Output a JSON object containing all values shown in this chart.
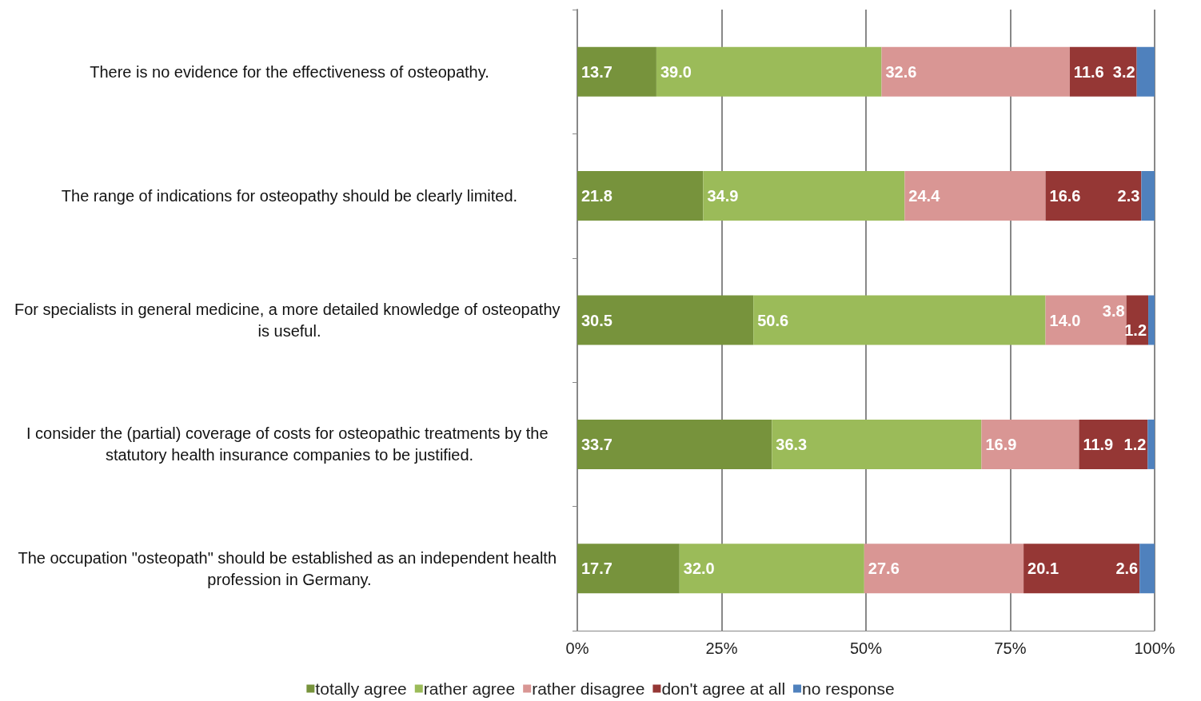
{
  "chart_data": {
    "type": "bar",
    "orientation": "horizontal",
    "stacked": true,
    "categories": [
      "There is no evidence for the effectiveness of osteopathy.",
      "The range of indications for osteopathy should be clearly limited.",
      "For specialists in general medicine, a more detailed knowledge of osteopathy is useful.",
      "I consider the (partial) coverage of costs for osteopathic treatments by the statutory health insurance companies to be justified.",
      "The occupation \"osteopath\" should be established as an independent health profession in Germany."
    ],
    "series": [
      {
        "name": "totally agree",
        "color": "#77933c",
        "values": [
          13.7,
          21.8,
          30.5,
          33.7,
          17.7
        ],
        "value_labels": [
          "13.7",
          "21.8",
          "30.5",
          "33.7",
          "17.7"
        ]
      },
      {
        "name": "rather agree",
        "color": "#9bbb59",
        "values": [
          39.0,
          34.9,
          50.6,
          36.3,
          32.0
        ],
        "value_labels": [
          "39.0",
          "34.9",
          "50.6",
          "36.3",
          "32.0"
        ]
      },
      {
        "name": "rather disagree",
        "color": "#d99694",
        "values": [
          32.6,
          24.4,
          14.0,
          16.9,
          27.6
        ],
        "value_labels": [
          "32.6",
          "24.4",
          "14.0",
          "16.9",
          "27.6"
        ]
      },
      {
        "name": "don't agree at all",
        "color": "#953735",
        "values": [
          11.6,
          16.6,
          3.8,
          11.9,
          20.1
        ],
        "value_labels": [
          "11.6",
          "16.6",
          "3.8",
          "11.9",
          "20.1"
        ]
      },
      {
        "name": "no response",
        "color": "#4f81bd",
        "values": [
          3.2,
          2.3,
          1.2,
          1.2,
          2.6
        ],
        "value_labels": [
          "3.2",
          "2.3",
          "1.2",
          "1.2",
          "2.6"
        ]
      }
    ],
    "xlim": [
      0,
      100
    ],
    "xticks": [
      {
        "value": 0,
        "label": "0%"
      },
      {
        "value": 25,
        "label": "25%"
      },
      {
        "value": 50,
        "label": "50%"
      },
      {
        "value": 75,
        "label": "75%"
      },
      {
        "value": 100,
        "label": "100%"
      }
    ],
    "grid": "x",
    "legend": "bottom"
  }
}
